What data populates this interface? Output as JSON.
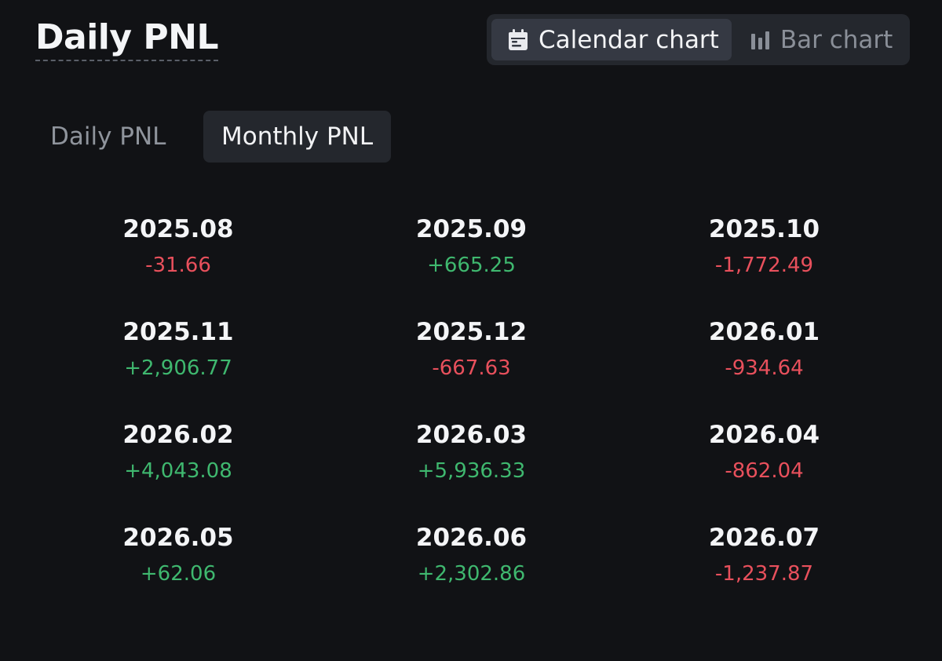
{
  "header": {
    "title": "Daily PNL"
  },
  "view_toggle": {
    "calendar_label": "Calendar chart",
    "bar_label": "Bar chart",
    "selected": "Calendar chart"
  },
  "tabs": {
    "daily_label": "Daily PNL",
    "monthly_label": "Monthly PNL",
    "selected": "Monthly PNL"
  },
  "colors": {
    "positive": "#3fb86f",
    "negative": "#e8505c",
    "background": "#111215",
    "panel": "#24272d"
  },
  "months": [
    {
      "month": "2025.08",
      "pnl": "-31.66"
    },
    {
      "month": "2025.09",
      "pnl": "+665.25"
    },
    {
      "month": "2025.10",
      "pnl": "-1,772.49"
    },
    {
      "month": "2025.11",
      "pnl": "+2,906.77"
    },
    {
      "month": "2025.12",
      "pnl": "-667.63"
    },
    {
      "month": "2026.01",
      "pnl": "-934.64"
    },
    {
      "month": "2026.02",
      "pnl": "+4,043.08"
    },
    {
      "month": "2026.03",
      "pnl": "+5,936.33"
    },
    {
      "month": "2026.04",
      "pnl": "-862.04"
    },
    {
      "month": "2026.05",
      "pnl": "+62.06"
    },
    {
      "month": "2026.06",
      "pnl": "+2,302.86"
    },
    {
      "month": "2026.07",
      "pnl": "-1,237.87"
    }
  ]
}
